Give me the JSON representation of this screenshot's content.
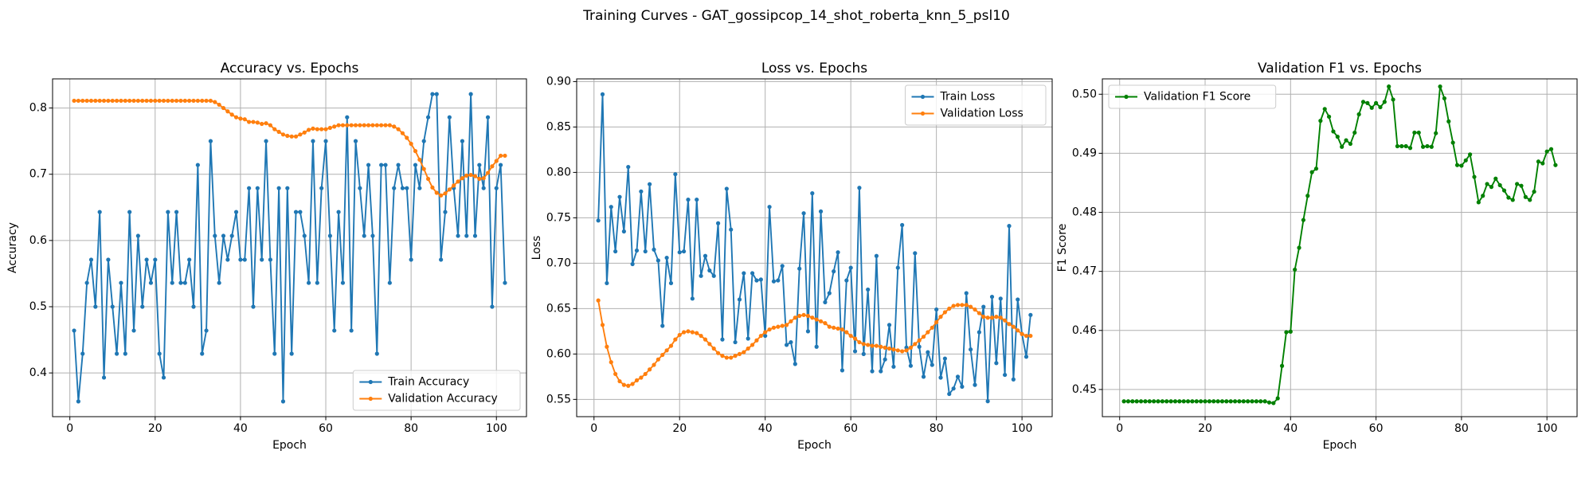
{
  "title": "Training Curves - GAT_gossipcop_14_shot_roberta_knn_5_psl10",
  "chart_data": [
    {
      "type": "line",
      "title": "Accuracy vs. Epochs",
      "xlabel": "Epoch",
      "ylabel": "Accuracy",
      "x": [
        1,
        2,
        3,
        4,
        5,
        6,
        7,
        8,
        9,
        10,
        11,
        12,
        13,
        14,
        15,
        16,
        17,
        18,
        19,
        20,
        21,
        22,
        23,
        24,
        25,
        26,
        27,
        28,
        29,
        30,
        31,
        32,
        33,
        34,
        35,
        36,
        37,
        38,
        39,
        40,
        41,
        42,
        43,
        44,
        45,
        46,
        47,
        48,
        49,
        50,
        51,
        52,
        53,
        54,
        55,
        56,
        57,
        58,
        59,
        60,
        61,
        62,
        63,
        64,
        65,
        66,
        67,
        68,
        69,
        70,
        71,
        72,
        73,
        74,
        75,
        76,
        77,
        78,
        79,
        80,
        81,
        82,
        83,
        84,
        85,
        86,
        87,
        88,
        89,
        90,
        91,
        92,
        93,
        94,
        95,
        96,
        97,
        98,
        99,
        100,
        101,
        102
      ],
      "series": [
        {
          "name": "Train Accuracy",
          "color": "#1f77b4",
          "values": [
            0.464,
            0.357,
            0.429,
            0.536,
            0.571,
            0.5,
            0.643,
            0.393,
            0.571,
            0.5,
            0.429,
            0.536,
            0.429,
            0.643,
            0.464,
            0.607,
            0.5,
            0.571,
            0.536,
            0.571,
            0.429,
            0.393,
            0.643,
            0.536,
            0.643,
            0.536,
            0.536,
            0.571,
            0.5,
            0.714,
            0.429,
            0.464,
            0.75,
            0.607,
            0.536,
            0.607,
            0.571,
            0.607,
            0.643,
            0.571,
            0.571,
            0.679,
            0.5,
            0.679,
            0.571,
            0.75,
            0.571,
            0.429,
            0.679,
            0.357,
            0.679,
            0.429,
            0.643,
            0.643,
            0.607,
            0.536,
            0.75,
            0.536,
            0.679,
            0.75,
            0.607,
            0.464,
            0.643,
            0.536,
            0.786,
            0.464,
            0.75,
            0.679,
            0.607,
            0.714,
            0.607,
            0.429,
            0.714,
            0.714,
            0.536,
            0.679,
            0.714,
            0.679,
            0.679,
            0.571,
            0.714,
            0.679,
            0.75,
            0.786,
            0.821,
            0.821,
            0.571,
            0.643,
            0.786,
            0.679,
            0.607,
            0.75,
            0.607,
            0.821,
            0.607,
            0.714,
            0.679,
            0.786,
            0.5,
            0.679,
            0.714,
            0.536
          ]
        },
        {
          "name": "Validation Accuracy",
          "color": "#ff7f0e",
          "values": [
            0.811,
            0.811,
            0.811,
            0.811,
            0.811,
            0.811,
            0.811,
            0.811,
            0.811,
            0.811,
            0.811,
            0.811,
            0.811,
            0.811,
            0.811,
            0.811,
            0.811,
            0.811,
            0.811,
            0.811,
            0.811,
            0.811,
            0.811,
            0.811,
            0.811,
            0.811,
            0.811,
            0.811,
            0.811,
            0.811,
            0.811,
            0.811,
            0.811,
            0.809,
            0.805,
            0.8,
            0.795,
            0.79,
            0.786,
            0.784,
            0.783,
            0.779,
            0.779,
            0.778,
            0.776,
            0.777,
            0.774,
            0.768,
            0.764,
            0.76,
            0.758,
            0.757,
            0.757,
            0.76,
            0.763,
            0.767,
            0.769,
            0.768,
            0.768,
            0.768,
            0.77,
            0.772,
            0.774,
            0.774,
            0.774,
            0.774,
            0.774,
            0.774,
            0.774,
            0.774,
            0.774,
            0.774,
            0.774,
            0.774,
            0.774,
            0.772,
            0.768,
            0.762,
            0.755,
            0.746,
            0.735,
            0.722,
            0.708,
            0.693,
            0.68,
            0.672,
            0.668,
            0.671,
            0.677,
            0.683,
            0.689,
            0.694,
            0.698,
            0.699,
            0.697,
            0.693,
            0.694,
            0.702,
            0.712,
            0.72,
            0.728,
            0.728
          ]
        }
      ],
      "xlim": [
        -4.05,
        107.05
      ],
      "xticks": [
        0,
        20,
        40,
        60,
        80,
        100
      ],
      "ylim": [
        0.334,
        0.844
      ],
      "yticks": [
        0.4,
        0.5,
        0.6,
        0.7,
        0.8
      ],
      "grid": true,
      "legend": "lower right"
    },
    {
      "type": "line",
      "title": "Loss vs. Epochs",
      "xlabel": "Epoch",
      "ylabel": "Loss",
      "x": [
        1,
        2,
        3,
        4,
        5,
        6,
        7,
        8,
        9,
        10,
        11,
        12,
        13,
        14,
        15,
        16,
        17,
        18,
        19,
        20,
        21,
        22,
        23,
        24,
        25,
        26,
        27,
        28,
        29,
        30,
        31,
        32,
        33,
        34,
        35,
        36,
        37,
        38,
        39,
        40,
        41,
        42,
        43,
        44,
        45,
        46,
        47,
        48,
        49,
        50,
        51,
        52,
        53,
        54,
        55,
        56,
        57,
        58,
        59,
        60,
        61,
        62,
        63,
        64,
        65,
        66,
        67,
        68,
        69,
        70,
        71,
        72,
        73,
        74,
        75,
        76,
        77,
        78,
        79,
        80,
        81,
        82,
        83,
        84,
        85,
        86,
        87,
        88,
        89,
        90,
        91,
        92,
        93,
        94,
        95,
        96,
        97,
        98,
        99,
        100,
        101,
        102
      ],
      "series": [
        {
          "name": "Train Loss",
          "color": "#1f77b4",
          "values": [
            0.747,
            0.886,
            0.678,
            0.762,
            0.713,
            0.773,
            0.735,
            0.806,
            0.699,
            0.714,
            0.779,
            0.713,
            0.787,
            0.715,
            0.703,
            0.631,
            0.706,
            0.678,
            0.798,
            0.712,
            0.713,
            0.77,
            0.661,
            0.77,
            0.686,
            0.708,
            0.692,
            0.686,
            0.744,
            0.616,
            0.782,
            0.737,
            0.613,
            0.66,
            0.689,
            0.617,
            0.689,
            0.681,
            0.682,
            0.62,
            0.762,
            0.68,
            0.681,
            0.697,
            0.61,
            0.613,
            0.589,
            0.694,
            0.755,
            0.625,
            0.777,
            0.608,
            0.757,
            0.657,
            0.667,
            0.691,
            0.712,
            0.582,
            0.681,
            0.695,
            0.603,
            0.783,
            0.6,
            0.671,
            0.581,
            0.708,
            0.581,
            0.594,
            0.632,
            0.586,
            0.695,
            0.742,
            0.607,
            0.587,
            0.711,
            0.608,
            0.575,
            0.602,
            0.588,
            0.649,
            0.574,
            0.595,
            0.556,
            0.562,
            0.575,
            0.564,
            0.667,
            0.605,
            0.566,
            0.624,
            0.652,
            0.548,
            0.663,
            0.59,
            0.661,
            0.577,
            0.741,
            0.572,
            0.66,
            0.622,
            0.597,
            0.643
          ]
        },
        {
          "name": "Validation Loss",
          "color": "#ff7f0e",
          "values": [
            0.659,
            0.632,
            0.608,
            0.591,
            0.578,
            0.57,
            0.566,
            0.565,
            0.567,
            0.571,
            0.574,
            0.578,
            0.583,
            0.588,
            0.594,
            0.599,
            0.604,
            0.609,
            0.616,
            0.621,
            0.624,
            0.625,
            0.624,
            0.623,
            0.62,
            0.616,
            0.611,
            0.606,
            0.601,
            0.598,
            0.596,
            0.596,
            0.598,
            0.6,
            0.602,
            0.606,
            0.61,
            0.615,
            0.62,
            0.624,
            0.627,
            0.629,
            0.63,
            0.631,
            0.632,
            0.636,
            0.64,
            0.642,
            0.643,
            0.642,
            0.64,
            0.638,
            0.636,
            0.634,
            0.63,
            0.629,
            0.628,
            0.627,
            0.624,
            0.62,
            0.617,
            0.613,
            0.611,
            0.61,
            0.609,
            0.609,
            0.608,
            0.607,
            0.606,
            0.605,
            0.604,
            0.603,
            0.604,
            0.607,
            0.611,
            0.615,
            0.619,
            0.624,
            0.629,
            0.635,
            0.641,
            0.646,
            0.65,
            0.653,
            0.654,
            0.654,
            0.654,
            0.652,
            0.649,
            0.645,
            0.641,
            0.64,
            0.64,
            0.641,
            0.64,
            0.637,
            0.633,
            0.63,
            0.626,
            0.622,
            0.62,
            0.62
          ]
        }
      ],
      "xlim": [
        -4.05,
        107.05
      ],
      "xticks": [
        0,
        20,
        40,
        60,
        80,
        100
      ],
      "ylim": [
        0.531,
        0.903
      ],
      "yticks": [
        0.55,
        {
          "value": 0.6,
          "label": "0.60"
        },
        0.65,
        {
          "value": 0.7,
          "label": "0.70"
        },
        0.75,
        {
          "value": 0.8,
          "label": "0.80"
        },
        0.85,
        {
          "value": 0.9,
          "label": "0.90"
        }
      ],
      "grid": true,
      "legend": "upper right"
    },
    {
      "type": "line",
      "title": "Validation F1 vs. Epochs",
      "xlabel": "Epoch",
      "ylabel": "F1 Score",
      "x": [
        1,
        2,
        3,
        4,
        5,
        6,
        7,
        8,
        9,
        10,
        11,
        12,
        13,
        14,
        15,
        16,
        17,
        18,
        19,
        20,
        21,
        22,
        23,
        24,
        25,
        26,
        27,
        28,
        29,
        30,
        31,
        32,
        33,
        34,
        35,
        36,
        37,
        38,
        39,
        40,
        41,
        42,
        43,
        44,
        45,
        46,
        47,
        48,
        49,
        50,
        51,
        52,
        53,
        54,
        55,
        56,
        57,
        58,
        59,
        60,
        61,
        62,
        63,
        64,
        65,
        66,
        67,
        68,
        69,
        70,
        71,
        72,
        73,
        74,
        75,
        76,
        77,
        78,
        79,
        80,
        81,
        82,
        83,
        84,
        85,
        86,
        87,
        88,
        89,
        90,
        91,
        92,
        93,
        94,
        95,
        96,
        97,
        98,
        99,
        100,
        101,
        102
      ],
      "series": [
        {
          "name": "Validation F1 Score",
          "color": "#008000",
          "values": [
            0.448,
            0.448,
            0.448,
            0.448,
            0.448,
            0.448,
            0.448,
            0.448,
            0.448,
            0.448,
            0.448,
            0.448,
            0.448,
            0.448,
            0.448,
            0.448,
            0.448,
            0.448,
            0.448,
            0.448,
            0.448,
            0.448,
            0.448,
            0.448,
            0.448,
            0.448,
            0.448,
            0.448,
            0.448,
            0.448,
            0.448,
            0.448,
            0.448,
            0.448,
            0.4478,
            0.4477,
            0.4485,
            0.454,
            0.4597,
            0.4598,
            0.4703,
            0.474,
            0.4787,
            0.4828,
            0.4868,
            0.4874,
            0.4955,
            0.4975,
            0.4962,
            0.4937,
            0.4928,
            0.4911,
            0.4922,
            0.4916,
            0.4935,
            0.4966,
            0.4987,
            0.4985,
            0.4977,
            0.4985,
            0.4978,
            0.4987,
            0.5013,
            0.4991,
            0.4912,
            0.4912,
            0.4912,
            0.4909,
            0.4935,
            0.4935,
            0.4911,
            0.4912,
            0.4911,
            0.4934,
            0.5013,
            0.4993,
            0.4954,
            0.4918,
            0.488,
            0.4879,
            0.4888,
            0.4898,
            0.486,
            0.4817,
            0.4828,
            0.4848,
            0.4843,
            0.4857,
            0.4846,
            0.4837,
            0.4825,
            0.4821,
            0.4848,
            0.4845,
            0.4826,
            0.4821,
            0.4835,
            0.4886,
            0.4883,
            0.4903,
            0.4907,
            0.488
          ]
        }
      ],
      "xlim": [
        -4.05,
        107.05
      ],
      "xticks": [
        0,
        20,
        40,
        60,
        80,
        100
      ],
      "ylim": [
        0.4454,
        0.5026
      ],
      "yticks": [
        0.45,
        0.46,
        0.47,
        0.48,
        0.49,
        {
          "value": 0.5,
          "label": "0.50"
        }
      ],
      "grid": true,
      "legend": "upper left"
    }
  ]
}
